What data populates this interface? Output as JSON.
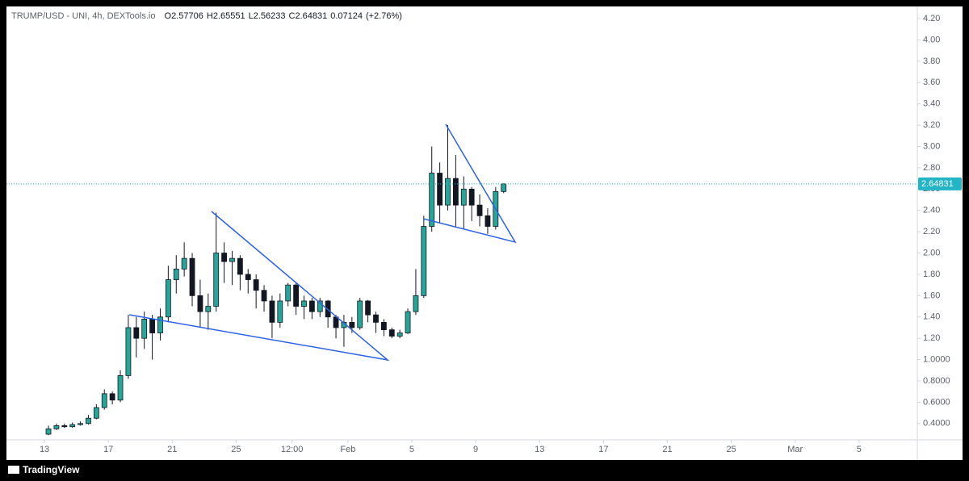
{
  "header": {
    "symbol": "TRUMP/USD - UNI, 4h, DEXTools.io",
    "ohlc": [
      {
        "label": "O",
        "value": 2.57706
      },
      {
        "label": "H",
        "value": 2.65551
      },
      {
        "label": "L",
        "value": 2.56233
      },
      {
        "label": "C",
        "value": 2.64831
      }
    ],
    "change": 0.07124,
    "change_pct": {
      "value": 2.76,
      "label": "(+2.76%)"
    }
  },
  "chart_data": {
    "type": "candlestick",
    "x": [
      13.25,
      13.75,
      14.25,
      14.75,
      15.25,
      15.75,
      16.25,
      16.75,
      17.25,
      17.75,
      18.25,
      18.75,
      19.25,
      19.75,
      20.25,
      20.75,
      21.25,
      21.75,
      22.25,
      22.75,
      23.25,
      23.75,
      24.25,
      24.75,
      25.25,
      25.75,
      26.25,
      26.75,
      27.25,
      27.75,
      28.25,
      28.75,
      29.25,
      29.75,
      30.25,
      30.75,
      31.25,
      31.75,
      32.25,
      32.75,
      33.25,
      33.75,
      34.25,
      34.75,
      35.25,
      35.75,
      36.25,
      36.75,
      37.25,
      37.75,
      38.25,
      38.75,
      39.25,
      39.75,
      40.25,
      40.75,
      41.25,
      41.75
    ],
    "open": [
      0.3,
      0.35,
      0.38,
      0.37,
      0.39,
      0.4,
      0.45,
      0.55,
      0.68,
      0.62,
      0.85,
      1.3,
      1.2,
      1.38,
      1.25,
      1.4,
      1.75,
      1.85,
      1.95,
      1.6,
      1.45,
      1.5,
      2.0,
      1.92,
      1.95,
      1.8,
      1.75,
      1.65,
      1.55,
      1.35,
      1.55,
      1.7,
      1.5,
      1.55,
      1.45,
      1.55,
      1.4,
      1.3,
      1.35,
      1.3,
      1.55,
      1.42,
      1.35,
      1.28,
      1.22,
      1.25,
      1.45,
      1.6,
      2.25,
      2.75,
      2.45,
      2.7,
      2.45,
      2.6,
      2.45,
      2.35,
      2.25,
      2.57706
    ],
    "high": [
      0.38,
      0.4,
      0.4,
      0.41,
      0.42,
      0.48,
      0.58,
      0.72,
      0.7,
      0.9,
      1.42,
      1.4,
      1.45,
      1.42,
      1.48,
      1.88,
      1.98,
      2.1,
      2.0,
      1.75,
      1.62,
      2.38,
      2.1,
      2.02,
      1.98,
      1.85,
      1.8,
      1.7,
      1.6,
      1.62,
      1.72,
      1.72,
      1.6,
      1.58,
      1.58,
      1.56,
      1.42,
      1.42,
      1.4,
      1.58,
      1.56,
      1.45,
      1.38,
      1.3,
      1.28,
      1.48,
      1.85,
      2.35,
      3.0,
      2.85,
      3.2,
      2.92,
      2.72,
      2.62,
      2.55,
      2.42,
      2.62,
      2.65551
    ],
    "low": [
      0.29,
      0.34,
      0.36,
      0.36,
      0.38,
      0.39,
      0.44,
      0.53,
      0.58,
      0.6,
      0.82,
      1.02,
      1.1,
      1.0,
      1.18,
      1.35,
      1.62,
      1.78,
      1.5,
      1.3,
      1.28,
      1.45,
      1.72,
      1.7,
      1.65,
      1.62,
      1.48,
      1.45,
      1.2,
      1.3,
      1.5,
      1.42,
      1.38,
      1.38,
      1.4,
      1.3,
      1.2,
      1.12,
      1.25,
      1.28,
      1.35,
      1.25,
      1.22,
      1.2,
      1.2,
      1.24,
      1.42,
      1.58,
      2.2,
      2.28,
      2.4,
      2.25,
      2.22,
      2.3,
      2.25,
      2.18,
      2.22,
      2.56233
    ],
    "close": [
      0.35,
      0.38,
      0.37,
      0.39,
      0.4,
      0.45,
      0.55,
      0.68,
      0.62,
      0.85,
      1.3,
      1.2,
      1.38,
      1.25,
      1.4,
      1.75,
      1.85,
      1.95,
      1.6,
      1.45,
      1.5,
      2.0,
      1.92,
      1.95,
      1.8,
      1.75,
      1.65,
      1.55,
      1.35,
      1.55,
      1.7,
      1.5,
      1.55,
      1.45,
      1.55,
      1.4,
      1.3,
      1.35,
      1.3,
      1.55,
      1.42,
      1.35,
      1.28,
      1.22,
      1.25,
      1.45,
      1.6,
      2.25,
      2.75,
      2.45,
      2.7,
      2.45,
      2.6,
      2.45,
      2.35,
      2.25,
      2.57706,
      2.64831
    ],
    "up_color": "#26a69a",
    "down_color": "#131722",
    "xlim": [
      10.62,
      67.65
    ],
    "xticks": [
      13,
      17,
      21,
      25,
      {
        "value": 28.5,
        "label": "12:00"
      },
      {
        "value": 32,
        "label": "Feb"
      },
      {
        "value": 36,
        "label": "5"
      },
      {
        "value": 40,
        "label": "9"
      },
      {
        "value": 44,
        "label": "13"
      },
      {
        "value": 48,
        "label": "17"
      },
      {
        "value": 52,
        "label": "21"
      },
      {
        "value": 56,
        "label": "25"
      },
      {
        "value": 60,
        "label": "Mar"
      },
      {
        "value": 64,
        "label": "5"
      }
    ],
    "ylim": [
      0.247,
      4.314
    ],
    "yticks": [
      {
        "value": 4.2,
        "label": "4.20"
      },
      {
        "value": 4.0,
        "label": "4.00"
      },
      {
        "value": 3.8,
        "label": "3.80"
      },
      {
        "value": 3.6,
        "label": "3.60"
      },
      {
        "value": 3.4,
        "label": "3.40"
      },
      {
        "value": 3.2,
        "label": "3.20"
      },
      {
        "value": 3.0,
        "label": "3.00"
      },
      {
        "value": 2.8,
        "label": "2.80"
      },
      {
        "value": 2.6,
        "label": "2.60"
      },
      {
        "value": 2.4,
        "label": "2.40"
      },
      {
        "value": 2.2,
        "label": "2.20"
      },
      {
        "value": 2.0,
        "label": "2.00"
      },
      {
        "value": 1.8,
        "label": "1.80"
      },
      {
        "value": 1.6,
        "label": "1.60"
      },
      {
        "value": 1.4,
        "label": "1.40"
      },
      {
        "value": 1.2,
        "label": "1.20"
      },
      {
        "value": 1.0,
        "label": "1.0000"
      },
      {
        "value": 0.8,
        "label": "0.8000"
      },
      {
        "value": 0.6,
        "label": "0.6000"
      },
      {
        "value": 0.4,
        "label": "0.4000"
      }
    ],
    "grid": false,
    "last_price": 2.64831,
    "last_price_color": "#22b5c8"
  },
  "footer": {
    "brand": "TradingView"
  }
}
